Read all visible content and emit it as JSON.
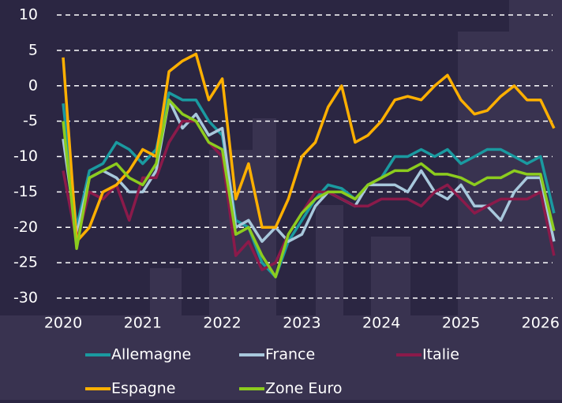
{
  "chart_data": {
    "type": "line",
    "x": [
      2020,
      2020.17,
      2020.33,
      2020.5,
      2020.67,
      2020.83,
      2021,
      2021.17,
      2021.33,
      2021.5,
      2021.67,
      2021.83,
      2022,
      2022.17,
      2022.33,
      2022.5,
      2022.67,
      2022.83,
      2023,
      2023.17,
      2023.33,
      2023.5,
      2023.67,
      2023.83,
      2024,
      2024.17,
      2024.33,
      2024.5,
      2024.67,
      2024.83,
      2025,
      2025.17,
      2025.33,
      2025.5,
      2025.67,
      2025.83,
      2026,
      2026.17
    ],
    "xlim": [
      2020,
      2026.2
    ],
    "xticks": [
      2020,
      2021,
      2022,
      2023,
      2024,
      2025,
      2026
    ],
    "ylim": [
      -30,
      10
    ],
    "yticks": [
      10,
      5,
      0,
      -5,
      -10,
      -15,
      -20,
      -25,
      -30
    ],
    "grid": true,
    "series": [
      {
        "name": "Allemagne",
        "color": "#1a9aa0",
        "values": [
          -2.5,
          -20,
          -12,
          -11,
          -8,
          -9,
          -11,
          -9,
          -1,
          -2,
          -2,
          -5,
          -7,
          -19,
          -20,
          -25,
          -27,
          -22,
          -19,
          -16,
          -14,
          -14.5,
          -16,
          -14,
          -13,
          -10,
          -10,
          -9,
          -10,
          -9,
          -11,
          -10,
          -9,
          -9,
          -10,
          -11,
          -10,
          -18
        ]
      },
      {
        "name": "France",
        "color": "#a8c8dc",
        "values": [
          -7.5,
          -21,
          -13,
          -12,
          -13,
          -15,
          -15,
          -12,
          -2,
          -6,
          -4,
          -7,
          -6,
          -20,
          -19,
          -22,
          -20,
          -22,
          -21,
          -17,
          -15,
          -16,
          -17,
          -14,
          -14,
          -14,
          -15,
          -12,
          -15,
          -16,
          -14,
          -17,
          -17,
          -19,
          -15,
          -13,
          -13,
          -22
        ]
      },
      {
        "name": "Italie",
        "color": "#8b1a4a",
        "values": [
          -12,
          -22,
          -15,
          -16,
          -14,
          -19,
          -13,
          -13,
          -8,
          -5,
          -5,
          -8,
          -10,
          -24,
          -22,
          -26,
          -25,
          -21,
          -18,
          -15,
          -15,
          -16,
          -17,
          -17,
          -16,
          -16,
          -16,
          -17,
          -15,
          -14,
          -16,
          -18,
          -17,
          -16,
          -16,
          -16,
          -15,
          -24
        ]
      },
      {
        "name": "Espagne",
        "color": "#ffb000",
        "values": [
          4,
          -22,
          -20,
          -15,
          -14,
          -12,
          -9,
          -10,
          2,
          3.5,
          4.5,
          -2,
          1,
          -16,
          -11,
          -20,
          -20,
          -16,
          -10,
          -8,
          -3,
          0,
          -8,
          -7,
          -5,
          -2,
          -1.5,
          -2,
          0,
          1.5,
          -2,
          -4,
          -3.5,
          -1.5,
          0,
          -2,
          -2,
          -6
        ]
      },
      {
        "name": "Zone Euro",
        "color": "#8ccc1e",
        "values": [
          -5,
          -23,
          -13,
          -12,
          -11,
          -13,
          -14,
          -11,
          -2,
          -4,
          -5,
          -8,
          -9,
          -21,
          -20,
          -24,
          -27,
          -21,
          -18,
          -16,
          -15,
          -15,
          -16,
          -14,
          -13,
          -12,
          -12,
          -11,
          -12.5,
          -12.5,
          -13,
          -14,
          -13,
          -13,
          -12,
          -12.5,
          -12.5,
          -20.5
        ]
      }
    ]
  }
}
